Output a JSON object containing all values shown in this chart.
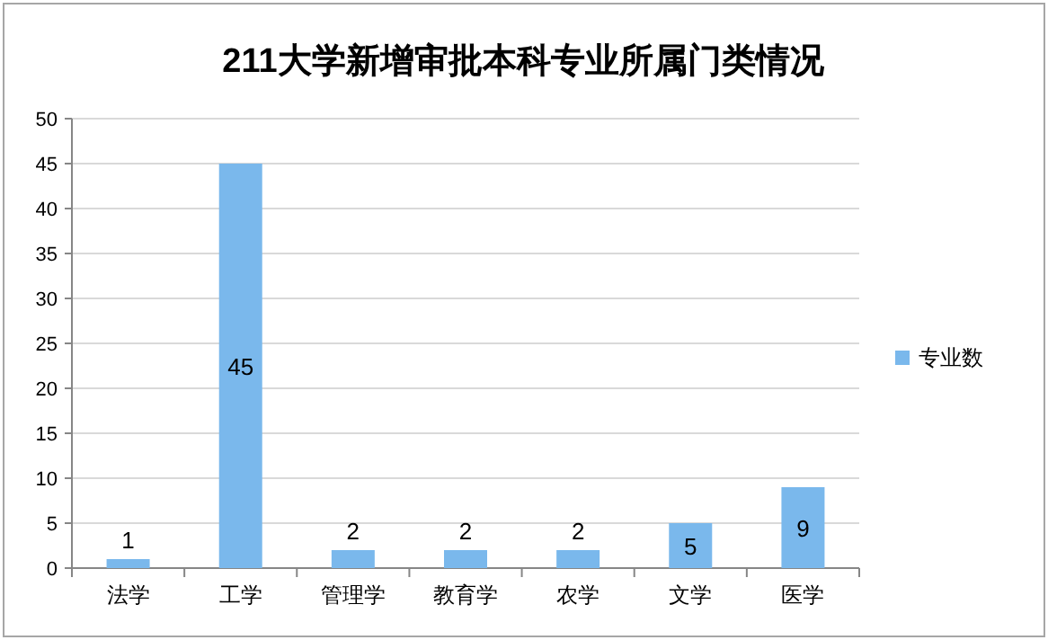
{
  "chart_data": {
    "type": "bar",
    "title": "211大学新增审批本科专业所属门类情况",
    "categories": [
      "法学",
      "工学",
      "管理学",
      "教育学",
      "农学",
      "文学",
      "医学"
    ],
    "series": [
      {
        "name": "专业数",
        "color": "#7ab8ec",
        "values": [
          1,
          45,
          2,
          2,
          2,
          5,
          9
        ]
      }
    ],
    "ylim": [
      0,
      50
    ],
    "yticks": [
      0,
      5,
      10,
      15,
      20,
      25,
      30,
      35,
      40,
      45,
      50
    ],
    "grid": "y",
    "legend": "right",
    "data_labels": true
  }
}
